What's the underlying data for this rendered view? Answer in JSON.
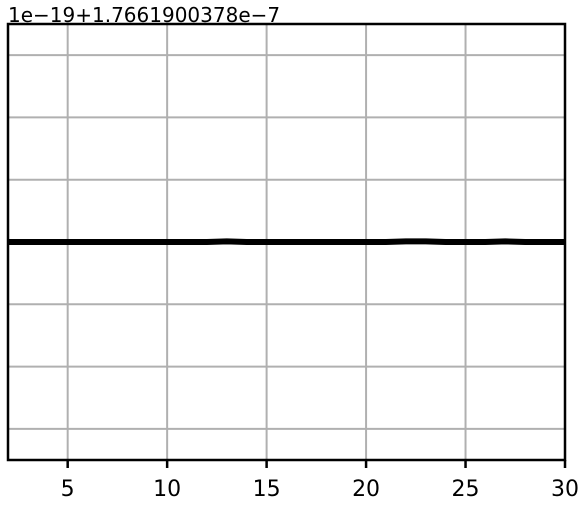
{
  "chart_data": {
    "type": "line",
    "title": "",
    "xlabel": "",
    "ylabel": "",
    "y_offset_text": "1e−19+1.7661900378e−7",
    "xlim": [
      2,
      30
    ],
    "ylim": [
      -0.35,
      0.35
    ],
    "x_ticks": [
      5,
      10,
      15,
      20,
      25,
      30
    ],
    "x_tick_labels": [
      "5",
      "10",
      "15",
      "20",
      "25",
      "30"
    ],
    "y_grid_values": [
      -0.3,
      -0.2,
      -0.1,
      0.0,
      0.1,
      0.2,
      0.3
    ],
    "grid": true,
    "legend": "none",
    "colors": {
      "line": "#000000",
      "grid": "#b0b0b0",
      "axes": "#000000"
    },
    "series": [
      {
        "x": [
          2,
          3,
          4,
          5,
          6,
          7,
          8,
          9,
          10,
          11,
          12,
          13,
          14,
          15,
          16,
          17,
          18,
          19,
          20,
          21,
          22,
          23,
          24,
          25,
          26,
          27,
          28,
          29,
          30
        ],
        "values": [
          0,
          0,
          0,
          0,
          0,
          0,
          0,
          0,
          0,
          0,
          0,
          0.001,
          0,
          0,
          0,
          0,
          0,
          0,
          0,
          0,
          0.001,
          0.001,
          0,
          0,
          0,
          0.001,
          0,
          0,
          0
        ]
      }
    ]
  }
}
